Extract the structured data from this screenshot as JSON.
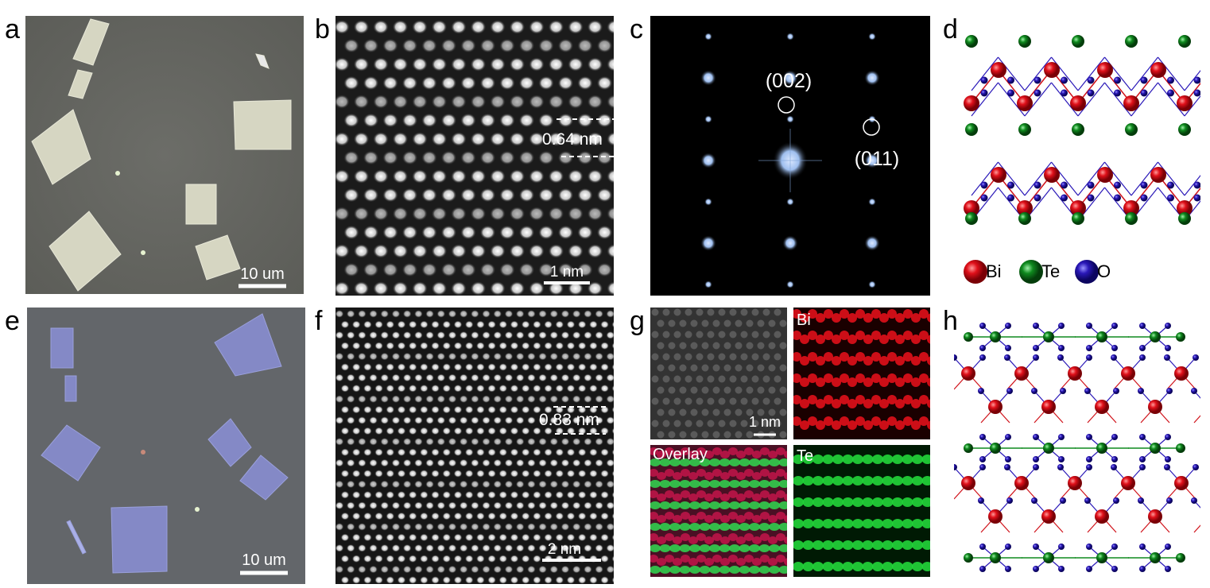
{
  "labels": [
    "a",
    "b",
    "c",
    "d",
    "e",
    "f",
    "g",
    "h"
  ],
  "scale_bars": {
    "a": "10 um",
    "b": "1 nm",
    "e": "10 um",
    "f": "2 nm",
    "g": "1 nm"
  },
  "annotations": {
    "b_spacing": "0.64 nm",
    "f_spacing": "0.83 nm",
    "c_spot1": "(002)",
    "c_spot2": "(011)"
  },
  "legend": {
    "bi": "Bi",
    "te": "Te",
    "o": "O"
  },
  "g_tags": {
    "bi": "Bi",
    "overlay": "Overlay",
    "te": "Te"
  },
  "colors": {
    "bi": "#e0101a",
    "te": "#0f8a1e",
    "o": "#2a18b8",
    "fft_spot": "#a9c8f5"
  }
}
